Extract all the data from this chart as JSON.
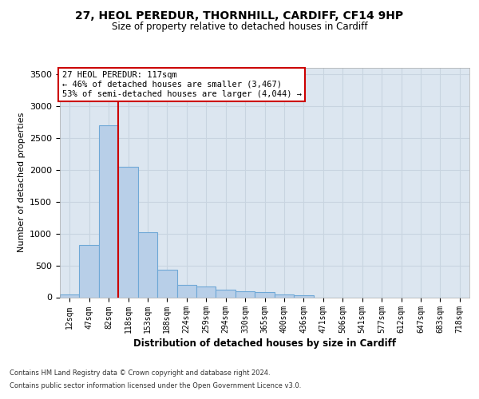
{
  "title1": "27, HEOL PEREDUR, THORNHILL, CARDIFF, CF14 9HP",
  "title2": "Size of property relative to detached houses in Cardiff",
  "xlabel": "Distribution of detached houses by size in Cardiff",
  "ylabel": "Number of detached properties",
  "categories": [
    "12sqm",
    "47sqm",
    "82sqm",
    "118sqm",
    "153sqm",
    "188sqm",
    "224sqm",
    "259sqm",
    "294sqm",
    "330sqm",
    "365sqm",
    "400sqm",
    "436sqm",
    "471sqm",
    "506sqm",
    "541sqm",
    "577sqm",
    "612sqm",
    "647sqm",
    "683sqm",
    "718sqm"
  ],
  "values": [
    50,
    820,
    2700,
    2050,
    1020,
    430,
    200,
    165,
    120,
    90,
    80,
    50,
    30,
    0,
    0,
    0,
    0,
    0,
    0,
    0,
    0
  ],
  "bar_color": "#b8cfe8",
  "bar_edge_color": "#6fa8d6",
  "grid_color": "#c8d4e0",
  "bg_color": "#dce6f0",
  "vline_color": "#cc0000",
  "vline_pos": 2.5,
  "annotation_line1": "27 HEOL PEREDUR: 117sqm",
  "annotation_line2": "← 46% of detached houses are smaller (3,467)",
  "annotation_line3": "53% of semi-detached houses are larger (4,044) →",
  "annotation_box_color": "#cc0000",
  "ylim": [
    0,
    3600
  ],
  "yticks": [
    0,
    500,
    1000,
    1500,
    2000,
    2500,
    3000,
    3500
  ],
  "footer1": "Contains HM Land Registry data © Crown copyright and database right 2024.",
  "footer2": "Contains public sector information licensed under the Open Government Licence v3.0."
}
